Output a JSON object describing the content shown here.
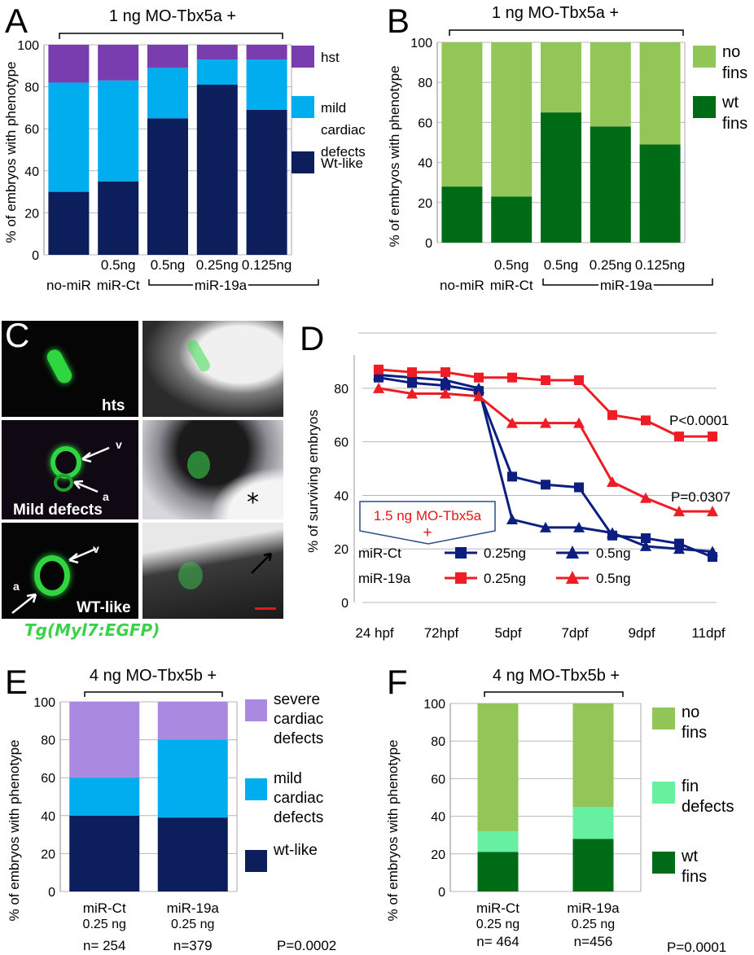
{
  "panels": {
    "A": {
      "letter": "A",
      "condition": "1 ng MO-Tbx5a +",
      "ylabel": "% of embryos with phenotype",
      "yticks": [
        "0",
        "20",
        "40",
        "60",
        "80",
        "100"
      ],
      "group_label": "miR-19a",
      "xlabels": [
        {
          "top": "",
          "bottom": "no-miR"
        },
        {
          "top": "0.5ng",
          "bottom": "miR-Ct"
        },
        {
          "top": "0.5ng",
          "bottom": ""
        },
        {
          "top": "0.25ng",
          "bottom": ""
        },
        {
          "top": "0.125ng",
          "bottom": ""
        }
      ],
      "legend": [
        {
          "lines": [
            "hst"
          ],
          "color": "#7a3db0"
        },
        {
          "lines": [
            "mild",
            "cardiac",
            "defects"
          ],
          "color": "#00aeef"
        },
        {
          "lines": [
            "Wt-like"
          ],
          "color": "#0c1f5c"
        }
      ]
    },
    "B": {
      "letter": "B",
      "condition": "1 ng MO-Tbx5a +",
      "ylabel": "% of embryos with phenotype",
      "yticks": [
        "0",
        "20",
        "40",
        "60",
        "80",
        "100"
      ],
      "group_label": "miR-19a",
      "xlabels": [
        {
          "top": "",
          "bottom": "no-miR"
        },
        {
          "top": "0.5ng",
          "bottom": "miR-Ct"
        },
        {
          "top": "0.5ng",
          "bottom": ""
        },
        {
          "top": "0.25ng",
          "bottom": ""
        },
        {
          "top": "0.125ng",
          "bottom": ""
        }
      ],
      "legend": [
        {
          "lines": [
            "no",
            "fins"
          ],
          "color": "#92c657"
        },
        {
          "lines": [
            "wt",
            "fins"
          ],
          "color": "#006b16"
        }
      ]
    },
    "C": {
      "letter": "C",
      "row1_label": "hts",
      "row2_label": "Mild defects",
      "row3_label": "WT-like",
      "v_label": "v",
      "a_label": "a",
      "asterisk": "*",
      "caption": "Tg(Myl7:EGFP)"
    },
    "D": {
      "letter": "D",
      "ylabel": "% of surviving embryos",
      "yticks": [
        "0",
        "20",
        "40",
        "60",
        "80"
      ],
      "xticks": [
        "24 hpf",
        "72hpf",
        "5dpf",
        "7dpf",
        "9dpf",
        "11dpf"
      ],
      "inset_line1": "1.5 ng MO-Tbx5a",
      "inset_line2": "+",
      "p1": "P<0.0001",
      "p2": "P=0.0307",
      "legend_row1": "miR-Ct",
      "legend_row2": "miR-19a",
      "legend_dose1": "0.25ng",
      "legend_dose2": "0.5ng"
    },
    "E": {
      "letter": "E",
      "condition": "4 ng MO-Tbx5b +",
      "ylabel": "% of embryos with phenotype",
      "yticks": [
        "0",
        "20",
        "40",
        "60",
        "80",
        "100"
      ],
      "xlabels": [
        {
          "top": "miR-Ct",
          "dose": "0.25 ng",
          "n": "n= 254"
        },
        {
          "top": "miR-19a",
          "dose": "0.25 ng",
          "n": "n=379"
        }
      ],
      "pvalue": "P=0.0002",
      "legend": [
        {
          "lines": [
            "severe",
            "cardiac",
            "defects"
          ],
          "color": "#a98ae0"
        },
        {
          "lines": [
            "mild",
            "cardiac",
            "defects"
          ],
          "color": "#00aeef"
        },
        {
          "lines": [
            "wt-like"
          ],
          "color": "#0c1f5c"
        }
      ]
    },
    "F": {
      "letter": "F",
      "condition": "4 ng MO-Tbx5b +",
      "ylabel": "% of embryos with phenotype",
      "yticks": [
        "0",
        "20",
        "40",
        "60",
        "80",
        "100"
      ],
      "xlabels": [
        {
          "top": "miR-Ct",
          "dose": "0.25 ng",
          "n": "n= 464"
        },
        {
          "top": "miR-19a",
          "dose": "0.25 ng",
          "n": "n=456"
        }
      ],
      "pvalue": "P=0.0001",
      "legend": [
        {
          "lines": [
            "no",
            "fins"
          ],
          "color": "#92c657"
        },
        {
          "lines": [
            "fin",
            "defects"
          ],
          "color": "#66f0a0"
        },
        {
          "lines": [
            "wt",
            "fins"
          ],
          "color": "#006b16"
        }
      ]
    }
  },
  "chart_data": [
    {
      "panel": "A",
      "type": "bar",
      "stacked": true,
      "ylim": [
        0,
        100
      ],
      "categories": [
        "no-miR",
        "0.5ng miR-Ct",
        "0.5ng miR-19a",
        "0.25ng miR-19a",
        "0.125ng miR-19a"
      ],
      "series": [
        {
          "name": "Wt-like",
          "color": "#0c1f5c",
          "values": [
            30,
            35,
            65,
            81,
            69
          ]
        },
        {
          "name": "mild cardiac defects",
          "color": "#00aeef",
          "values": [
            52,
            48,
            24,
            12,
            24
          ]
        },
        {
          "name": "hst",
          "color": "#7a3db0",
          "values": [
            18,
            17,
            11,
            7,
            7
          ]
        }
      ]
    },
    {
      "panel": "B",
      "type": "bar",
      "stacked": true,
      "ylim": [
        0,
        100
      ],
      "categories": [
        "no-miR",
        "0.5ng miR-Ct",
        "0.5ng miR-19a",
        "0.25ng miR-19a",
        "0.125ng miR-19a"
      ],
      "series": [
        {
          "name": "wt fins",
          "color": "#006b16",
          "values": [
            28,
            23,
            65,
            58,
            49
          ]
        },
        {
          "name": "no fins",
          "color": "#92c657",
          "values": [
            72,
            77,
            35,
            42,
            51
          ]
        }
      ]
    },
    {
      "panel": "D",
      "type": "line",
      "ylim": [
        0,
        90
      ],
      "x": [
        "24 hpf",
        "48 hpf",
        "72hpf",
        "4dpf",
        "5dpf",
        "6dpf",
        "7dpf",
        "8dpf",
        "9dpf",
        "10dpf",
        "11dpf"
      ],
      "series": [
        {
          "name": "miR-Ct 0.25ng",
          "color": "#0c1f80",
          "marker": "square",
          "values": [
            84,
            82,
            81,
            79,
            47,
            44,
            43,
            25,
            24,
            22,
            17
          ]
        },
        {
          "name": "miR-Ct 0.5ng",
          "color": "#0c1f80",
          "marker": "triangle",
          "values": [
            85,
            84,
            83,
            80,
            31,
            28,
            28,
            26,
            21,
            20,
            19
          ]
        },
        {
          "name": "miR-19a 0.25ng",
          "color": "#ee1c24",
          "marker": "square",
          "values": [
            87,
            86,
            86,
            84,
            84,
            83,
            83,
            70,
            68,
            62,
            62
          ]
        },
        {
          "name": "miR-19a 0.5ng",
          "color": "#ee1c24",
          "marker": "triangle",
          "values": [
            80,
            78,
            78,
            77,
            67,
            67,
            67,
            45,
            39,
            34,
            34
          ]
        }
      ]
    },
    {
      "panel": "E",
      "type": "bar",
      "stacked": true,
      "ylim": [
        0,
        100
      ],
      "categories": [
        "miR-Ct 0.25 ng",
        "miR-19a 0.25 ng"
      ],
      "series": [
        {
          "name": "wt-like",
          "color": "#0c1f5c",
          "values": [
            40,
            39
          ]
        },
        {
          "name": "mild cardiac defects",
          "color": "#00aeef",
          "values": [
            20,
            41
          ]
        },
        {
          "name": "severe cardiac defects",
          "color": "#a98ae0",
          "values": [
            40,
            20
          ]
        }
      ]
    },
    {
      "panel": "F",
      "type": "bar",
      "stacked": true,
      "ylim": [
        0,
        100
      ],
      "categories": [
        "miR-Ct 0.25 ng",
        "miR-19a 0.25 ng"
      ],
      "series": [
        {
          "name": "wt fins",
          "color": "#006b16",
          "values": [
            21,
            28
          ]
        },
        {
          "name": "fin defects",
          "color": "#66f0a0",
          "values": [
            11,
            17
          ]
        },
        {
          "name": "no fins",
          "color": "#92c657",
          "values": [
            68,
            55
          ]
        }
      ]
    }
  ]
}
